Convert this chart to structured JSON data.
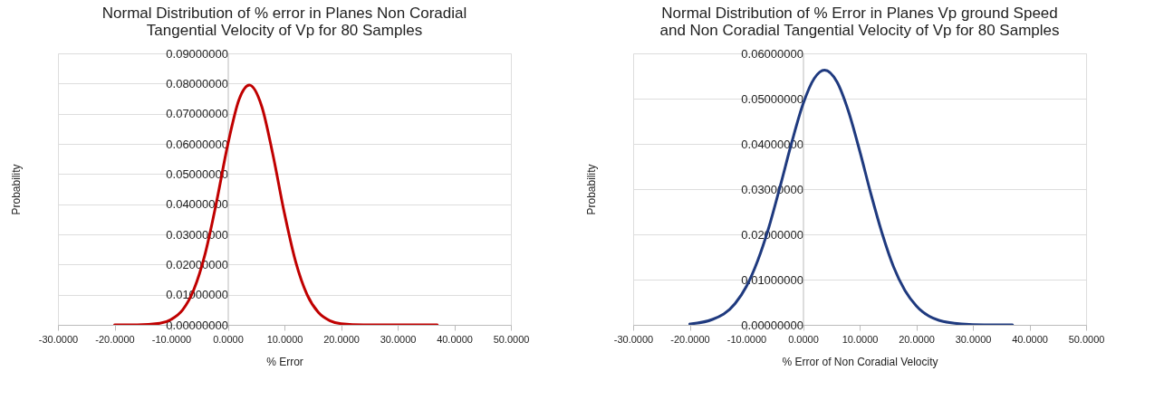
{
  "chart_data": [
    {
      "type": "line",
      "title": "Normal Distribution of % error in Planes Non Coradial\nTangential Velocity of Vp for 80 Samples",
      "xlabel": "% Error",
      "ylabel": "Probability",
      "x": [
        -20,
        -16,
        -12,
        -10,
        -8,
        -6,
        -4,
        -2,
        0,
        2,
        3.8,
        6,
        8,
        10,
        12,
        14,
        16,
        18,
        20,
        24,
        28,
        37
      ],
      "series": [
        {
          "color": "#c00000",
          "values": [
            0.0,
            0.0,
            0.0005,
            0.0018,
            0.0049,
            0.0117,
            0.0236,
            0.0407,
            0.0598,
            0.0748,
            0.0795,
            0.0724,
            0.0561,
            0.037,
            0.0208,
            0.01,
            0.0041,
            0.0014,
            0.0004,
            0.0,
            0.0,
            0.0
          ]
        }
      ],
      "xlim": [
        -30,
        50
      ],
      "xticks": [
        {
          "value": -30,
          "label": "-30.0000"
        },
        {
          "value": -20,
          "label": "-20.0000"
        },
        {
          "value": -10,
          "label": "-10.0000"
        },
        {
          "value": 0,
          "label": "0.0000"
        },
        {
          "value": 10,
          "label": "10.0000"
        },
        {
          "value": 20,
          "label": "20.0000"
        },
        {
          "value": 30,
          "label": "30.0000"
        },
        {
          "value": 40,
          "label": "40.0000"
        },
        {
          "value": 50,
          "label": "50.0000"
        }
      ],
      "ylim": [
        0,
        0.09
      ],
      "yticks": [
        {
          "value": 0,
          "label": "0.00000000"
        },
        {
          "value": 0.01,
          "label": "0.01000000"
        },
        {
          "value": 0.02,
          "label": "0.02000000"
        },
        {
          "value": 0.03,
          "label": "0.03000000"
        },
        {
          "value": 0.04,
          "label": "0.04000000"
        },
        {
          "value": 0.05,
          "label": "0.05000000"
        },
        {
          "value": 0.06,
          "label": "0.06000000"
        },
        {
          "value": 0.07,
          "label": "0.07000000"
        },
        {
          "value": 0.08,
          "label": "0.08000000"
        },
        {
          "value": 0.09,
          "label": "0.09000000"
        }
      ],
      "grid": "y",
      "marker": "none",
      "line_style": "solid"
    },
    {
      "type": "line",
      "title": "Normal Distribution of % Error in Planes Vp ground Speed\nand  Non Coradial Tangential Velocity of Vp for 80 Samples",
      "xlabel": "% Error of Non Coradial Velocity",
      "ylabel": "Probability",
      "x": [
        -20,
        -16,
        -12,
        -10,
        -8,
        -6,
        -4,
        -2,
        0,
        2,
        3.8,
        6,
        8,
        10,
        12,
        14,
        16,
        18,
        20,
        24,
        28,
        32,
        37
      ],
      "series": [
        {
          "color": "#1f3a7f",
          "values": [
            0.0002,
            0.0012,
            0.0047,
            0.0085,
            0.0142,
            0.0217,
            0.0308,
            0.0403,
            0.0488,
            0.0545,
            0.0563,
            0.0537,
            0.0473,
            0.0385,
            0.0289,
            0.0201,
            0.0128,
            0.0076,
            0.0042,
            0.001,
            0.0002,
            0.0,
            0.0
          ]
        }
      ],
      "xlim": [
        -30,
        50
      ],
      "xticks": [
        {
          "value": -30,
          "label": "-30.0000"
        },
        {
          "value": -20,
          "label": "-20.0000"
        },
        {
          "value": -10,
          "label": "-10.0000"
        },
        {
          "value": 0,
          "label": "0.0000"
        },
        {
          "value": 10,
          "label": "10.0000"
        },
        {
          "value": 20,
          "label": "20.0000"
        },
        {
          "value": 30,
          "label": "30.0000"
        },
        {
          "value": 40,
          "label": "40.0000"
        },
        {
          "value": 50,
          "label": "50.0000"
        }
      ],
      "ylim": [
        0,
        0.06
      ],
      "yticks": [
        {
          "value": 0,
          "label": "0.00000000"
        },
        {
          "value": 0.01,
          "label": "0.01000000"
        },
        {
          "value": 0.02,
          "label": "0.02000000"
        },
        {
          "value": 0.03,
          "label": "0.03000000"
        },
        {
          "value": 0.04,
          "label": "0.04000000"
        },
        {
          "value": 0.05,
          "label": "0.05000000"
        },
        {
          "value": 0.06,
          "label": "0.06000000"
        }
      ],
      "grid": "y",
      "marker": "none",
      "line_style": "solid"
    }
  ]
}
